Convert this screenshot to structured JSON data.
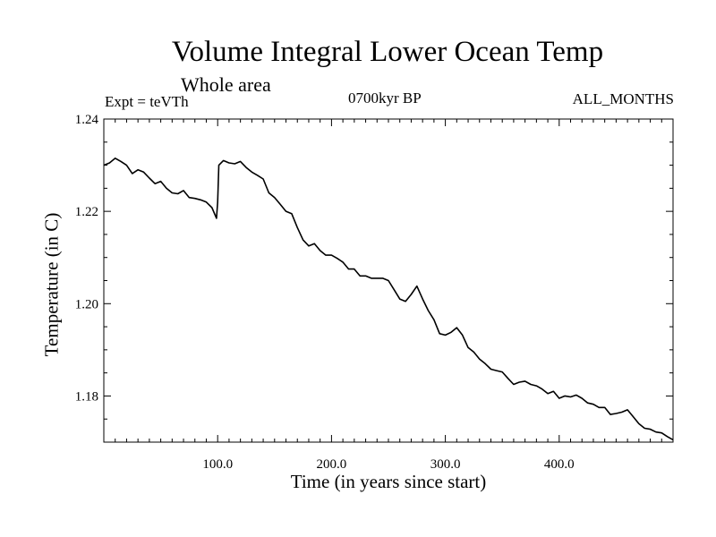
{
  "chart_data": {
    "type": "line",
    "title": "Volume Integral Lower Ocean Temp",
    "subtitle": "Whole area",
    "left_note": "Expt = teVTh",
    "center_note": "0700kyr BP",
    "right_note": "ALL_MONTHS",
    "xlabel": "Time (in years since start)",
    "ylabel": "Temperature (in C)",
    "xlim": [
      0,
      500
    ],
    "ylim": [
      1.17,
      1.24
    ],
    "xticks": [
      100,
      200,
      300,
      400
    ],
    "xtick_labels": [
      "100.0",
      "200.0",
      "300.0",
      "400.0"
    ],
    "yticks": [
      1.18,
      1.2,
      1.22,
      1.24
    ],
    "ytick_labels": [
      "1.18",
      "1.20",
      "1.22",
      "1.24"
    ],
    "grid": false,
    "series": [
      {
        "color": "#000000",
        "x": [
          0,
          5,
          10,
          15,
          20,
          25,
          30,
          35,
          40,
          45,
          50,
          55,
          60,
          65,
          70,
          75,
          80,
          85,
          90,
          95,
          99,
          100,
          101,
          105,
          110,
          115,
          120,
          125,
          130,
          135,
          140,
          145,
          150,
          155,
          160,
          165,
          170,
          175,
          180,
          185,
          190,
          195,
          200,
          205,
          210,
          215,
          220,
          225,
          230,
          235,
          240,
          245,
          250,
          255,
          260,
          265,
          270,
          275,
          280,
          285,
          290,
          295,
          300,
          305,
          310,
          315,
          320,
          325,
          330,
          335,
          340,
          345,
          350,
          355,
          360,
          365,
          370,
          375,
          380,
          385,
          390,
          395,
          400,
          405,
          410,
          415,
          420,
          425,
          430,
          435,
          440,
          445,
          450,
          455,
          460,
          465,
          470,
          475,
          480,
          485,
          490,
          495,
          500
        ],
        "y": [
          1.23,
          1.2305,
          1.2315,
          1.2308,
          1.23,
          1.2282,
          1.229,
          1.2285,
          1.2272,
          1.226,
          1.2265,
          1.225,
          1.224,
          1.2238,
          1.2245,
          1.223,
          1.2228,
          1.2225,
          1.222,
          1.2208,
          1.2185,
          1.222,
          1.23,
          1.231,
          1.2305,
          1.2303,
          1.2308,
          1.2295,
          1.2285,
          1.2278,
          1.227,
          1.224,
          1.223,
          1.2215,
          1.22,
          1.2195,
          1.2165,
          1.2138,
          1.2125,
          1.213,
          1.2115,
          1.2105,
          1.2105,
          1.2098,
          1.209,
          1.2075,
          1.2075,
          1.206,
          1.206,
          1.2055,
          1.2055,
          1.2055,
          1.205,
          1.203,
          1.201,
          1.2005,
          1.202,
          1.2038,
          1.201,
          1.1985,
          1.1965,
          1.1935,
          1.1932,
          1.1938,
          1.1948,
          1.1932,
          1.1905,
          1.1895,
          1.188,
          1.187,
          1.1858,
          1.1855,
          1.1852,
          1.1838,
          1.1825,
          1.183,
          1.1832,
          1.1825,
          1.1822,
          1.1815,
          1.1805,
          1.181,
          1.1795,
          1.18,
          1.1798,
          1.1802,
          1.1795,
          1.1785,
          1.1782,
          1.1775,
          1.1775,
          1.176,
          1.1762,
          1.1765,
          1.177,
          1.1755,
          1.174,
          1.173,
          1.1728,
          1.1722,
          1.172,
          1.1712,
          1.1705
        ]
      }
    ]
  }
}
